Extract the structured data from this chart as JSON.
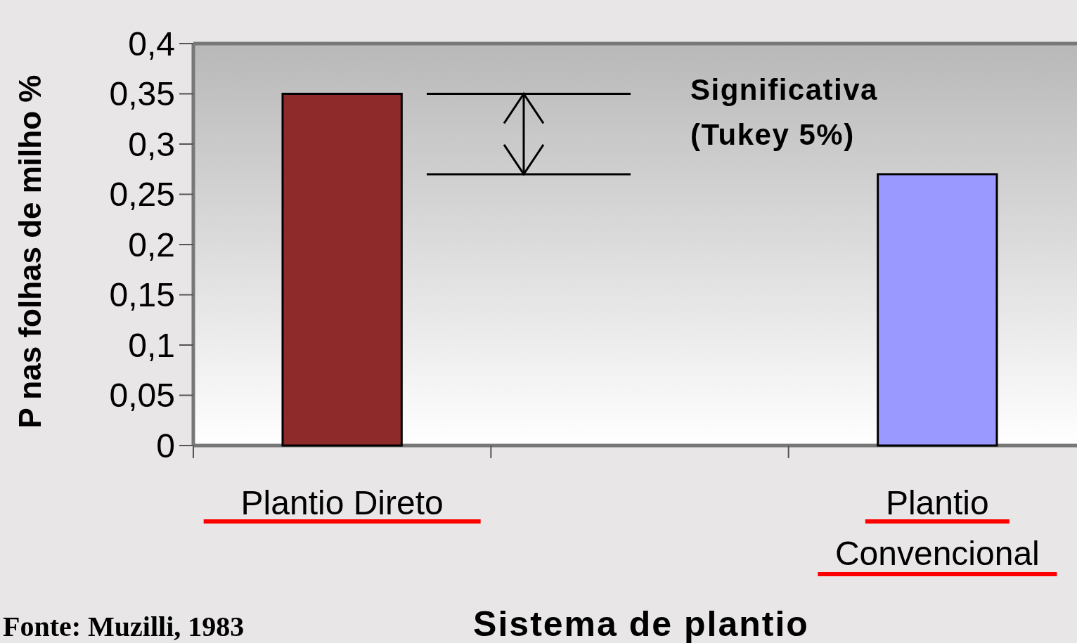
{
  "chart_data": {
    "type": "bar",
    "xlabel": "Sistema de plantio",
    "ylabel": "P nas folhas de milho %",
    "categories": [
      "Plantio Direto",
      null,
      "Plantio Convencional"
    ],
    "values": [
      0.35,
      null,
      0.27
    ],
    "colors": [
      "#8e2a2a",
      null,
      "#9999ff"
    ],
    "ylim": [
      0,
      0.4
    ],
    "yticks": [
      {
        "value": 0,
        "label": "0"
      },
      {
        "value": 0.05,
        "label": "0,05"
      },
      {
        "value": 0.1,
        "label": "0,1"
      },
      {
        "value": 0.15,
        "label": "0,15"
      },
      {
        "value": 0.2,
        "label": "0,2"
      },
      {
        "value": 0.25,
        "label": "0,25"
      },
      {
        "value": 0.3,
        "label": "0,3"
      },
      {
        "value": 0.35,
        "label": "0,35"
      },
      {
        "value": 0.4,
        "label": "0,4"
      }
    ],
    "annotations": [
      "Significativa\n(Tukey 5%)",
      "Fonte: Muzilli, 1983"
    ],
    "grid": false
  }
}
